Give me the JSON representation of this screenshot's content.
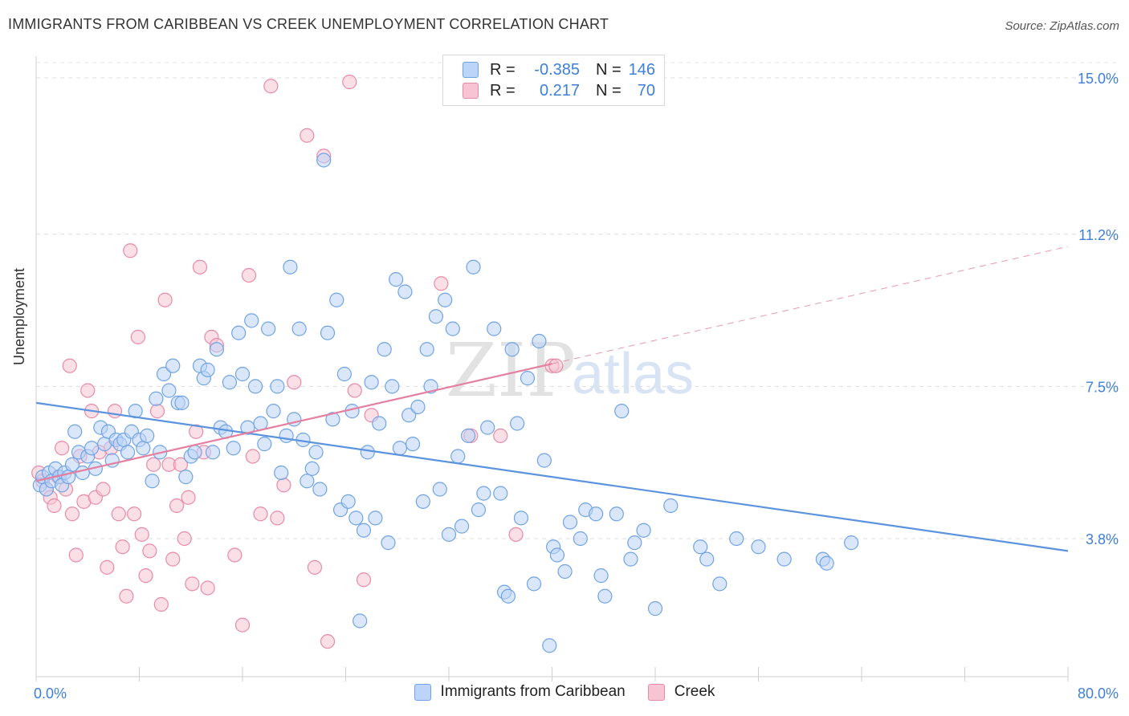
{
  "title": "IMMIGRANTS FROM CARIBBEAN VS CREEK UNEMPLOYMENT CORRELATION CHART",
  "source": "Source: ZipAtlas.com",
  "watermark": {
    "zip": "ZIP",
    "atlas": "atlas"
  },
  "legend": {
    "r_label": "R =",
    "n_label": "N =",
    "series1": {
      "r": "-0.385",
      "n": "146",
      "color": "#6fa3e6",
      "fill": "#bcd4f5"
    },
    "series2": {
      "r": "0.217",
      "n": "70",
      "color": "#e889a8",
      "fill": "#f7c4d4"
    }
  },
  "chart_data": {
    "type": "scatter",
    "ylabel": "Unemployment",
    "x_tick_labels": [
      "0.0%",
      "80.0%"
    ],
    "y_tick_labels": [
      "15.0%",
      "11.2%",
      "7.5%",
      "3.8%"
    ],
    "y_ticks": [
      15.0,
      11.2,
      7.5,
      3.8
    ],
    "xlim": [
      0,
      80
    ],
    "ylim": [
      0,
      15.6
    ],
    "grid": true,
    "legend_position": "top-center",
    "series": [
      {
        "name": "Immigrants from Caribbean",
        "color": "#5b93de",
        "trend": {
          "x0": 0,
          "y0": 7.1,
          "x1": 80,
          "y1": 3.5,
          "dash_from": null
        },
        "points": [
          [
            0.3,
            5.1
          ],
          [
            0.5,
            5.3
          ],
          [
            0.8,
            5.0
          ],
          [
            1.0,
            5.4
          ],
          [
            1.2,
            5.2
          ],
          [
            1.5,
            5.5
          ],
          [
            1.8,
            5.3
          ],
          [
            2.0,
            5.1
          ],
          [
            2.2,
            5.4
          ],
          [
            2.5,
            5.3
          ],
          [
            2.8,
            5.6
          ],
          [
            3.0,
            6.4
          ],
          [
            3.3,
            5.9
          ],
          [
            3.6,
            5.4
          ],
          [
            4.0,
            5.8
          ],
          [
            4.3,
            6.0
          ],
          [
            4.6,
            5.5
          ],
          [
            5.0,
            6.5
          ],
          [
            5.3,
            6.1
          ],
          [
            5.6,
            6.4
          ],
          [
            5.9,
            5.7
          ],
          [
            6.2,
            6.2
          ],
          [
            6.5,
            6.1
          ],
          [
            6.8,
            6.2
          ],
          [
            7.1,
            5.9
          ],
          [
            7.4,
            6.4
          ],
          [
            7.7,
            6.9
          ],
          [
            8.0,
            6.2
          ],
          [
            8.3,
            6.0
          ],
          [
            8.6,
            6.3
          ],
          [
            9.0,
            5.2
          ],
          [
            9.3,
            7.2
          ],
          [
            9.6,
            5.9
          ],
          [
            9.9,
            7.8
          ],
          [
            10.3,
            7.4
          ],
          [
            10.6,
            8.0
          ],
          [
            11.0,
            7.1
          ],
          [
            11.3,
            7.1
          ],
          [
            11.6,
            5.3
          ],
          [
            12.0,
            5.8
          ],
          [
            12.3,
            5.9
          ],
          [
            12.7,
            8.0
          ],
          [
            13.0,
            7.7
          ],
          [
            13.3,
            7.9
          ],
          [
            13.7,
            5.9
          ],
          [
            14.0,
            8.4
          ],
          [
            14.3,
            6.5
          ],
          [
            14.7,
            6.4
          ],
          [
            15.0,
            7.6
          ],
          [
            15.3,
            6.0
          ],
          [
            15.7,
            8.8
          ],
          [
            16.0,
            7.8
          ],
          [
            16.4,
            6.5
          ],
          [
            16.7,
            9.1
          ],
          [
            17.0,
            7.5
          ],
          [
            17.4,
            6.6
          ],
          [
            17.7,
            6.1
          ],
          [
            18.0,
            8.9
          ],
          [
            18.4,
            6.9
          ],
          [
            18.7,
            7.5
          ],
          [
            19.0,
            5.4
          ],
          [
            19.4,
            6.3
          ],
          [
            19.7,
            10.4
          ],
          [
            20.0,
            6.7
          ],
          [
            20.4,
            8.9
          ],
          [
            20.7,
            6.2
          ],
          [
            21.0,
            5.2
          ],
          [
            21.4,
            5.5
          ],
          [
            21.7,
            5.9
          ],
          [
            22.0,
            5.0
          ],
          [
            22.3,
            13.0
          ],
          [
            22.6,
            8.8
          ],
          [
            23.0,
            6.7
          ],
          [
            23.3,
            9.6
          ],
          [
            23.6,
            4.5
          ],
          [
            23.9,
            7.8
          ],
          [
            24.2,
            4.7
          ],
          [
            24.5,
            6.9
          ],
          [
            24.8,
            4.3
          ],
          [
            25.1,
            1.8
          ],
          [
            25.4,
            4.0
          ],
          [
            25.7,
            5.9
          ],
          [
            26.0,
            7.6
          ],
          [
            26.3,
            4.3
          ],
          [
            26.6,
            6.6
          ],
          [
            27.0,
            8.4
          ],
          [
            27.3,
            3.7
          ],
          [
            27.6,
            7.5
          ],
          [
            27.9,
            10.1
          ],
          [
            28.2,
            6.0
          ],
          [
            28.6,
            9.8
          ],
          [
            28.9,
            6.8
          ],
          [
            29.2,
            6.1
          ],
          [
            29.6,
            7.0
          ],
          [
            30.0,
            4.7
          ],
          [
            30.3,
            8.4
          ],
          [
            30.6,
            7.5
          ],
          [
            31.0,
            9.2
          ],
          [
            31.3,
            5.0
          ],
          [
            31.7,
            9.6
          ],
          [
            32.0,
            3.9
          ],
          [
            32.3,
            8.9
          ],
          [
            32.7,
            5.8
          ],
          [
            33.0,
            4.1
          ],
          [
            33.5,
            6.3
          ],
          [
            33.9,
            10.4
          ],
          [
            34.3,
            4.5
          ],
          [
            34.7,
            4.9
          ],
          [
            35.0,
            6.5
          ],
          [
            35.5,
            8.9
          ],
          [
            36.0,
            4.9
          ],
          [
            36.3,
            2.5
          ],
          [
            36.6,
            2.4
          ],
          [
            36.9,
            8.4
          ],
          [
            37.3,
            6.6
          ],
          [
            37.6,
            4.3
          ],
          [
            38.1,
            7.7
          ],
          [
            38.6,
            2.7
          ],
          [
            39.0,
            8.6
          ],
          [
            39.4,
            5.7
          ],
          [
            39.8,
            1.2
          ],
          [
            40.1,
            3.6
          ],
          [
            40.4,
            3.4
          ],
          [
            41.0,
            3.0
          ],
          [
            41.4,
            4.2
          ],
          [
            42.2,
            3.8
          ],
          [
            42.6,
            4.5
          ],
          [
            43.4,
            4.4
          ],
          [
            43.8,
            2.9
          ],
          [
            44.1,
            2.4
          ],
          [
            45.0,
            4.4
          ],
          [
            45.4,
            6.9
          ],
          [
            46.1,
            3.3
          ],
          [
            46.4,
            3.7
          ],
          [
            47.1,
            4.0
          ],
          [
            48.0,
            2.1
          ],
          [
            49.2,
            4.6
          ],
          [
            51.5,
            3.6
          ],
          [
            52.0,
            3.3
          ],
          [
            53.0,
            2.7
          ],
          [
            54.3,
            3.8
          ],
          [
            56.0,
            3.6
          ],
          [
            58.0,
            3.3
          ],
          [
            61.0,
            3.3
          ],
          [
            61.3,
            3.2
          ],
          [
            63.2,
            3.7
          ]
        ]
      },
      {
        "name": "Creek",
        "color": "#e47fa0",
        "trend": {
          "x0": 0,
          "y0": 5.2,
          "x1": 80,
          "y1": 10.9,
          "dash_from": 40
        },
        "points": [
          [
            0.2,
            5.4
          ],
          [
            0.5,
            5.2
          ],
          [
            0.8,
            5.0
          ],
          [
            1.1,
            4.8
          ],
          [
            1.4,
            4.6
          ],
          [
            1.7,
            5.3
          ],
          [
            2.0,
            6.0
          ],
          [
            2.3,
            5.0
          ],
          [
            2.6,
            8.0
          ],
          [
            2.8,
            4.4
          ],
          [
            3.1,
            3.4
          ],
          [
            3.4,
            5.8
          ],
          [
            3.7,
            4.7
          ],
          [
            4.0,
            7.4
          ],
          [
            4.3,
            6.9
          ],
          [
            4.6,
            4.8
          ],
          [
            4.9,
            5.9
          ],
          [
            5.2,
            5.0
          ],
          [
            5.5,
            3.1
          ],
          [
            5.8,
            6.0
          ],
          [
            6.1,
            6.9
          ],
          [
            6.4,
            4.4
          ],
          [
            6.7,
            3.6
          ],
          [
            7.0,
            2.4
          ],
          [
            7.3,
            10.8
          ],
          [
            7.6,
            4.4
          ],
          [
            7.9,
            8.7
          ],
          [
            8.2,
            3.9
          ],
          [
            8.5,
            2.9
          ],
          [
            8.8,
            3.5
          ],
          [
            9.1,
            5.6
          ],
          [
            9.4,
            6.9
          ],
          [
            9.7,
            2.2
          ],
          [
            10.0,
            9.6
          ],
          [
            10.3,
            5.6
          ],
          [
            10.6,
            3.3
          ],
          [
            10.9,
            4.6
          ],
          [
            11.2,
            5.6
          ],
          [
            11.5,
            3.8
          ],
          [
            11.8,
            4.8
          ],
          [
            12.1,
            2.7
          ],
          [
            12.4,
            6.4
          ],
          [
            12.7,
            10.4
          ],
          [
            13.0,
            5.9
          ],
          [
            13.3,
            2.6
          ],
          [
            13.6,
            8.7
          ],
          [
            14.0,
            8.5
          ],
          [
            15.4,
            3.4
          ],
          [
            16.0,
            1.7
          ],
          [
            16.5,
            10.2
          ],
          [
            16.8,
            5.8
          ],
          [
            17.4,
            4.4
          ],
          [
            18.2,
            14.8
          ],
          [
            18.7,
            4.3
          ],
          [
            19.2,
            5.1
          ],
          [
            20.0,
            7.6
          ],
          [
            21.0,
            13.6
          ],
          [
            21.6,
            3.1
          ],
          [
            22.3,
            13.1
          ],
          [
            22.6,
            1.3
          ],
          [
            24.3,
            14.9
          ],
          [
            24.7,
            7.4
          ],
          [
            25.4,
            2.8
          ],
          [
            26.0,
            6.8
          ],
          [
            31.4,
            10.0
          ],
          [
            33.7,
            6.3
          ],
          [
            36.0,
            6.3
          ],
          [
            37.2,
            3.9
          ],
          [
            40.0,
            8.0
          ],
          [
            40.3,
            8.0
          ]
        ]
      }
    ]
  }
}
